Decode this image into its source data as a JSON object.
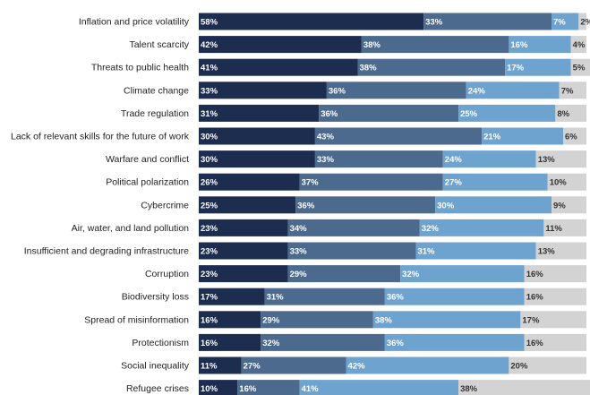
{
  "chart_data": {
    "type": "bar",
    "orientation": "horizontal",
    "stacked": true,
    "title": "",
    "xlabel": "",
    "ylabel": "",
    "xlim": [
      0,
      100
    ],
    "legend": "none",
    "categories": [
      "Inflation and price volatility",
      "Talent scarcity",
      "Threats to public health",
      "Climate change",
      "Trade regulation",
      "Lack of relevant skills for the future of work",
      "Warfare and conflict",
      "Political polarization",
      "Cybercrime",
      "Air, water, and land pollution",
      "Insufficient and degrading infrastructure",
      "Corruption",
      "Biodiversity loss",
      "Spread of misinformation",
      "Protectionism",
      "Social inequality",
      "Refugee crises"
    ],
    "series": [
      {
        "color": "#1c2d4f",
        "label_color": "#ffffff",
        "values": [
          58,
          42,
          41,
          33,
          31,
          30,
          30,
          26,
          25,
          23,
          23,
          23,
          17,
          16,
          16,
          11,
          10
        ]
      },
      {
        "color": "#4b6a8e",
        "label_color": "#ffffff",
        "values": [
          33,
          38,
          38,
          36,
          36,
          43,
          33,
          37,
          36,
          34,
          33,
          29,
          31,
          29,
          32,
          27,
          16
        ]
      },
      {
        "color": "#6ea3d0",
        "label_color": "#ffffff",
        "values": [
          7,
          16,
          17,
          24,
          25,
          21,
          24,
          27,
          30,
          32,
          31,
          32,
          36,
          38,
          36,
          42,
          41
        ]
      },
      {
        "color": "#d3d3d3",
        "label_color": "#333333",
        "values": [
          2,
          4,
          5,
          7,
          8,
          6,
          13,
          10,
          9,
          11,
          13,
          16,
          16,
          17,
          16,
          20,
          38
        ]
      }
    ]
  }
}
